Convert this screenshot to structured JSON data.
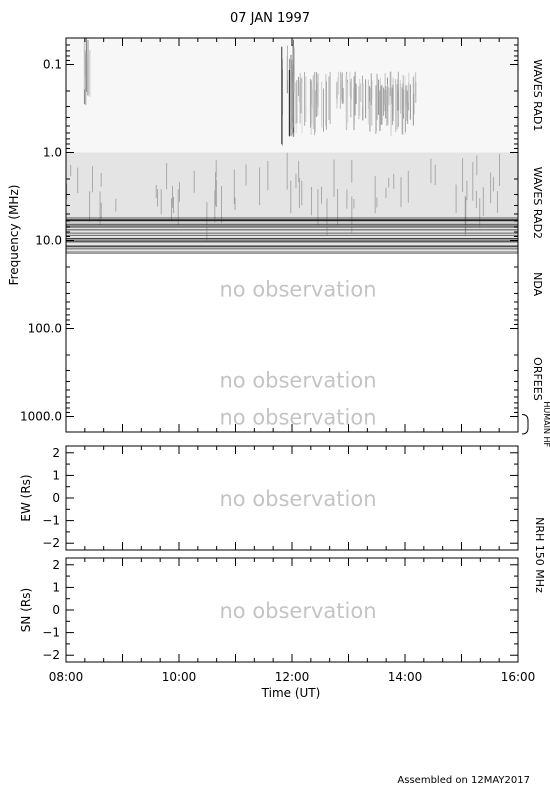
{
  "chart_data": {
    "type": "heatmap",
    "title": "07 JAN 1997",
    "footer": "Assembled on 12MAY2017",
    "colors": {
      "no_observation": "#c4c4c4",
      "spectrum_dark": "#111111"
    },
    "xaxis": {
      "label": "Time (UT)",
      "range_hours": [
        8,
        16
      ],
      "ticks": [
        {
          "value": 8,
          "label": "08:00"
        },
        {
          "value": 10,
          "label": "10:00"
        },
        {
          "value": 12,
          "label": "12:00"
        },
        {
          "value": 14,
          "label": "14:00"
        },
        {
          "value": 16,
          "label": "16:00"
        }
      ]
    },
    "spectrum_panel": {
      "ylabel": "Frequency (MHz)",
      "scale": "log",
      "ylim": [
        0.05,
        1500
      ],
      "yticks": [
        {
          "value": 0.1,
          "label": "0.1"
        },
        {
          "value": 1,
          "label": "1.0"
        },
        {
          "value": 10,
          "label": "10.0"
        },
        {
          "value": 100,
          "label": "100.0"
        },
        {
          "value": 1000,
          "label": "1000.0"
        }
      ],
      "bands": [
        {
          "name": "WAVES RAD1",
          "fmin": 0.05,
          "fmax": 1.0
        },
        {
          "name": "WAVES RAD2",
          "fmin": 1.0,
          "fmax": 14.0
        },
        {
          "name": "NDA",
          "fmin": 14.0,
          "fmax": 70.0
        },
        {
          "name": "ORFEES",
          "fmin": 140.0,
          "fmax": 1000.0
        },
        {
          "name": "HUMAIN HF",
          "fmin": 1000.0,
          "fmax": 1500.0
        }
      ],
      "no_observation_notes": [
        {
          "text": "no observation",
          "freq": 35
        },
        {
          "text": "no observation",
          "freq": 380
        },
        {
          "text": "no observation",
          "freq": 1000
        }
      ],
      "burst_events": [
        {
          "start": 8.3,
          "end": 8.45,
          "fmin": 0.05,
          "fmax": 0.3,
          "intensity": 0.6
        },
        {
          "start": 11.8,
          "end": 12.05,
          "fmin": 0.05,
          "fmax": 0.9,
          "intensity": 0.9
        },
        {
          "start": 12.0,
          "end": 14.2,
          "fmin": 0.12,
          "fmax": 0.65,
          "intensity": 0.45
        }
      ]
    },
    "position_panels": [
      {
        "ylabel": "EW (Rs)",
        "ylim": [
          -2.3,
          2.3
        ],
        "yticks": [
          {
            "value": 2,
            "label": "2"
          },
          {
            "value": 1,
            "label": "1"
          },
          {
            "value": 0,
            "label": "0"
          },
          {
            "value": -1,
            "label": "−1"
          },
          {
            "value": -2,
            "label": "−2"
          }
        ],
        "note": "no observation"
      },
      {
        "ylabel": "SN (Rs)",
        "ylim": [
          -2.3,
          2.3
        ],
        "yticks": [
          {
            "value": 2,
            "label": "2"
          },
          {
            "value": 1,
            "label": "1"
          },
          {
            "value": 0,
            "label": "0"
          },
          {
            "value": -1,
            "label": "−1"
          },
          {
            "value": -2,
            "label": "−2"
          }
        ],
        "note": "no observation"
      }
    ],
    "instrument_label": "NRH 150 MHz"
  }
}
